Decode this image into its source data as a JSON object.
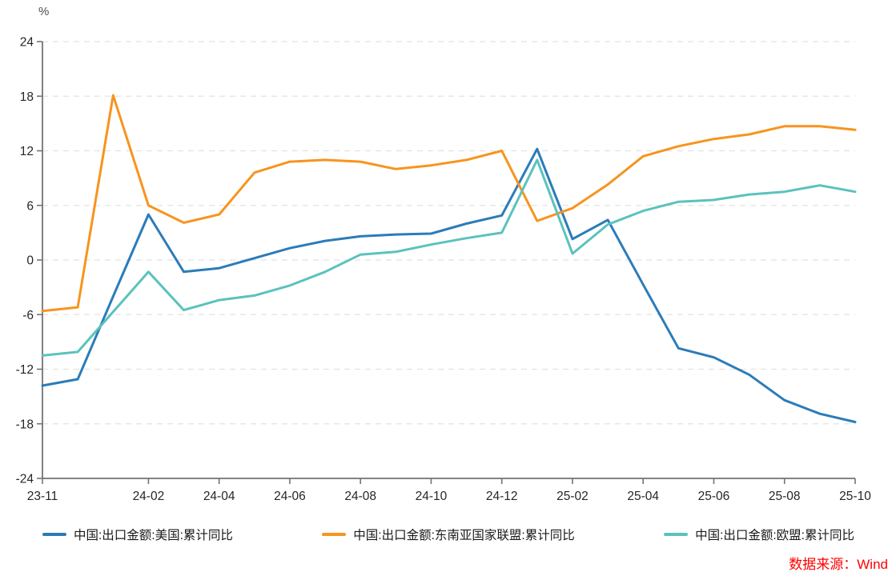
{
  "unit_label": "%",
  "source_note": "数据来源：Wind",
  "colors": {
    "axis": "#737373",
    "grid": "#e2e2e2",
    "tick_text": "#262626",
    "unit_text": "#4d4d4d",
    "legend_text": "#1a1a1a",
    "source": "#ff0000",
    "us": "#2b7cb9",
    "asean": "#f7941e",
    "eu": "#5bc2bd"
  },
  "chart_data": {
    "type": "line",
    "title": "",
    "xlabel": "",
    "ylabel": "%",
    "ylim": [
      -24,
      24
    ],
    "y_ticks": [
      24,
      18,
      12,
      6,
      0,
      -6,
      -12,
      -18,
      -24
    ],
    "grid": "horizontal-dashed",
    "legend_position": "bottom",
    "x": [
      "23-11",
      "23-12",
      "24-01",
      "24-02",
      "24-03",
      "24-04",
      "24-05",
      "24-06",
      "24-07",
      "24-08",
      "24-09",
      "24-10",
      "24-11",
      "24-12",
      "25-01",
      "25-02",
      "25-03",
      "25-04",
      "25-05",
      "25-06",
      "25-07",
      "25-08",
      "25-09",
      "25-10"
    ],
    "x_tick_labels": [
      "23-11",
      "24-02",
      "24-04",
      "24-06",
      "24-08",
      "24-10",
      "24-12",
      "25-02",
      "25-04",
      "25-06",
      "25-08",
      "25-10"
    ],
    "series": [
      {
        "key": "us",
        "name": "中国:出口金额:美国:累计同比",
        "color": "#2b7cb9",
        "values": [
          -13.8,
          -13.1,
          -4.0,
          5.0,
          -1.3,
          -0.9,
          0.2,
          1.3,
          2.1,
          2.6,
          2.8,
          2.9,
          4.0,
          4.9,
          12.2,
          2.3,
          4.4,
          -2.7,
          -9.7,
          -10.7,
          -12.6,
          -15.4,
          -16.9,
          -17.8
        ]
      },
      {
        "key": "asean",
        "name": "中国:出口金额:东南亚国家联盟:累计同比",
        "color": "#f7941e",
        "values": [
          -5.6,
          -5.2,
          18.1,
          6.0,
          4.1,
          5.0,
          9.6,
          10.8,
          11.0,
          10.8,
          10.0,
          10.4,
          11.0,
          12.0,
          4.3,
          5.7,
          8.3,
          11.4,
          12.5,
          13.3,
          13.8,
          14.7,
          14.7,
          14.3
        ]
      },
      {
        "key": "eu",
        "name": "中国:出口金额:欧盟:累计同比",
        "color": "#5bc2bd",
        "values": [
          -10.5,
          -10.1,
          -5.7,
          -1.3,
          -5.5,
          -4.4,
          -3.9,
          -2.8,
          -1.3,
          0.6,
          0.9,
          1.7,
          2.4,
          3.0,
          11.0,
          0.7,
          3.9,
          5.4,
          6.4,
          6.6,
          7.2,
          7.5,
          8.2,
          7.5
        ]
      }
    ]
  }
}
